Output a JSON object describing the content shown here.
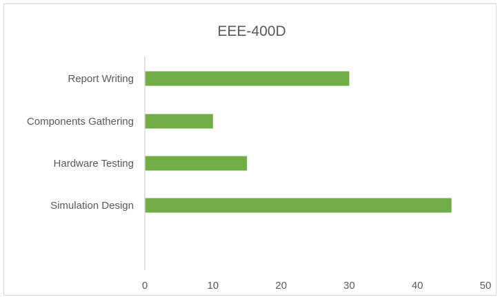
{
  "chart_data": {
    "type": "bar",
    "orientation": "horizontal",
    "title": "EEE-400D",
    "categories": [
      "Report Writing",
      "Components Gathering",
      "Hardware Testing",
      "Simulation Design"
    ],
    "values": [
      30,
      10,
      15,
      45
    ],
    "xlim": [
      0,
      50
    ],
    "xticks": [
      0,
      10,
      20,
      30,
      40,
      50
    ],
    "xlabel": "",
    "ylabel": "",
    "bar_color": "#70ad47",
    "grid": false,
    "legend": "none"
  }
}
